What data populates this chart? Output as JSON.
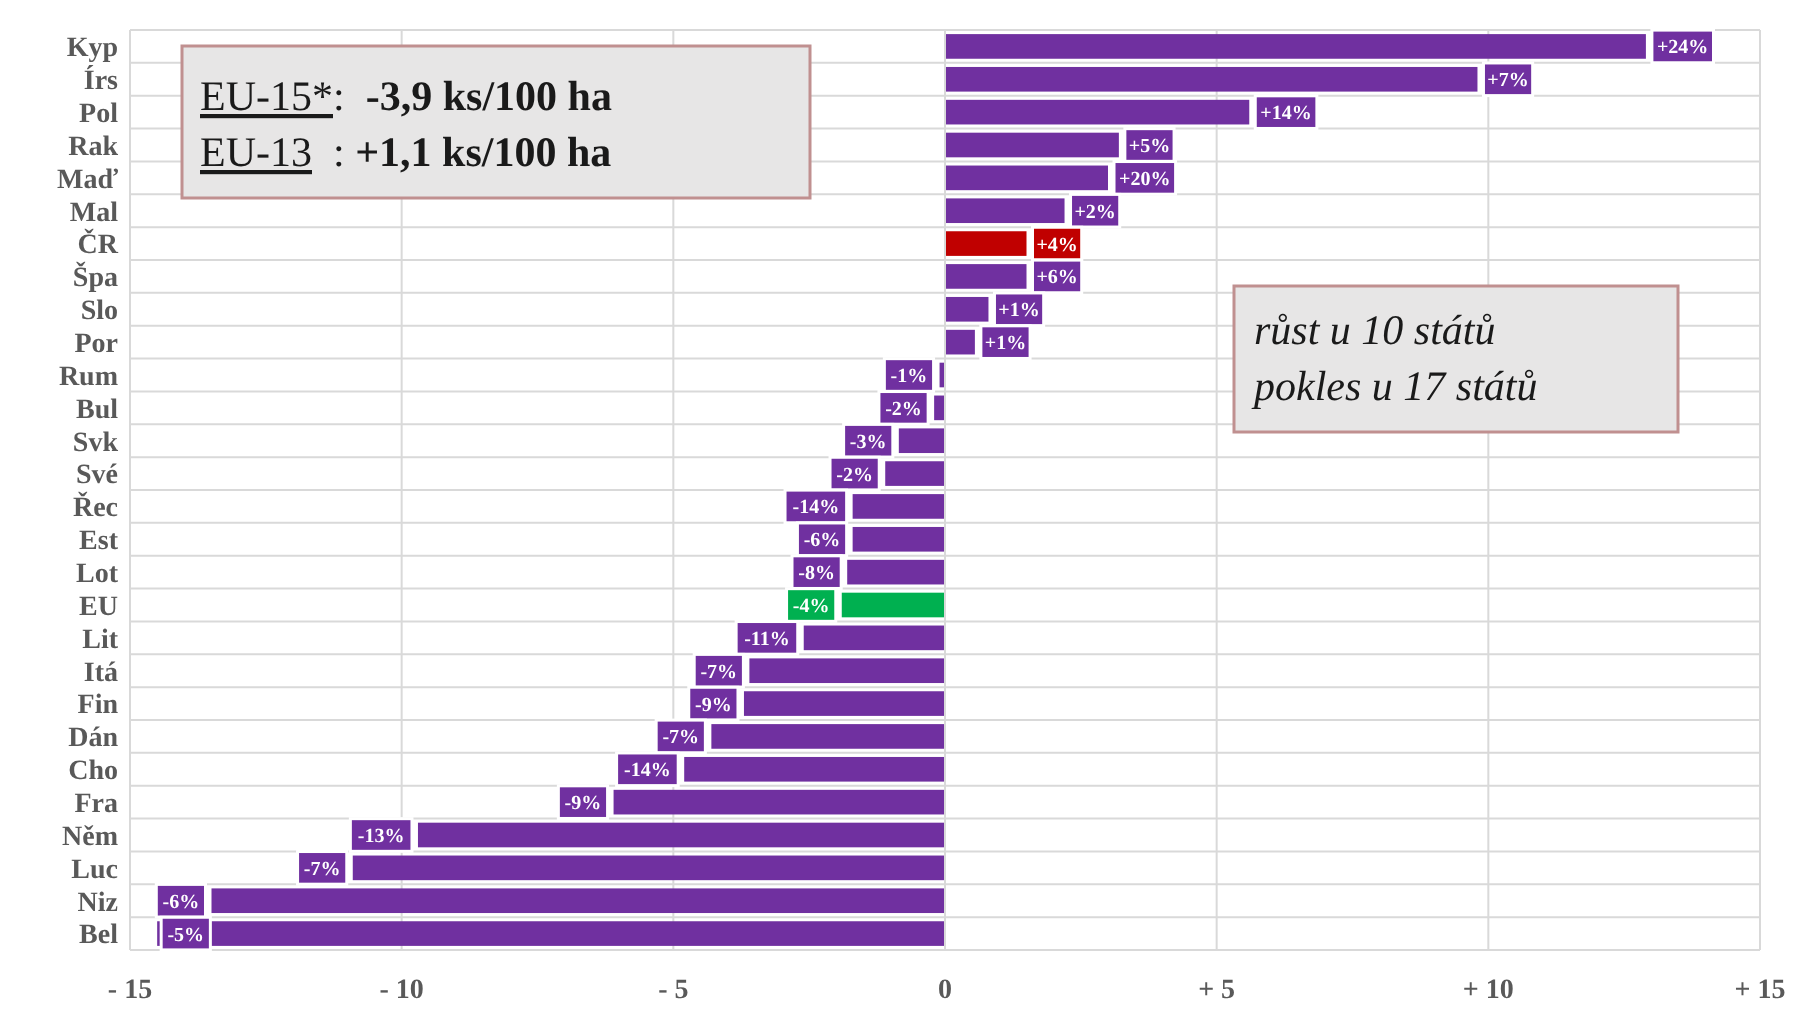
{
  "chart_data": {
    "type": "bar",
    "orientation": "horizontal",
    "categories": [
      "Kyp",
      "Írs",
      "Pol",
      "Rak",
      "Maď",
      "Mal",
      "ČR",
      "Špa",
      "Slo",
      "Por",
      "Rum",
      "Bul",
      "Svk",
      "Své",
      "Řec",
      "Est",
      "Lot",
      "EU",
      "Lit",
      "Itá",
      "Fin",
      "Dán",
      "Cho",
      "Fra",
      "Něm",
      "Luc",
      "Niz",
      "Bel"
    ],
    "values": [
      12.9,
      9.8,
      5.6,
      3.2,
      3.0,
      2.2,
      1.5,
      1.5,
      0.8,
      0.55,
      -0.1,
      -0.2,
      -0.85,
      -1.1,
      -1.7,
      -1.7,
      -1.8,
      -1.9,
      -2.6,
      -3.6,
      -3.7,
      -4.3,
      -4.8,
      -6.1,
      -9.7,
      -10.9,
      -13.5,
      -14.5
    ],
    "colors": [
      "#7030a0",
      "#7030a0",
      "#7030a0",
      "#7030a0",
      "#7030a0",
      "#7030a0",
      "#c00000",
      "#7030a0",
      "#7030a0",
      "#7030a0",
      "#7030a0",
      "#7030a0",
      "#7030a0",
      "#7030a0",
      "#7030a0",
      "#7030a0",
      "#7030a0",
      "#00b050",
      "#7030a0",
      "#7030a0",
      "#7030a0",
      "#7030a0",
      "#7030a0",
      "#7030a0",
      "#7030a0",
      "#7030a0",
      "#7030a0",
      "#7030a0"
    ],
    "xlim": [
      -15,
      15
    ],
    "xticks": [
      {
        "value": -15,
        "label": "- 15"
      },
      {
        "value": -10,
        "label": "- 10"
      },
      {
        "value": -5,
        "label": "- 5"
      },
      0,
      {
        "value": 5,
        "label": "+ 5"
      },
      {
        "value": 10,
        "label": "+ 10"
      },
      {
        "value": 15,
        "label": "+ 15"
      }
    ],
    "grid": true,
    "annotations": [
      "EU-15*:  -3,9 ks/100 ha",
      "EU-13  : +1,1 ks/100 ha",
      "růst u 10 států",
      "pokles u 17 států",
      {
        "text": "+24%",
        "x": 12.9,
        "y": "Kyp"
      },
      {
        "text": "+7%",
        "x": 9.8,
        "y": "Írs"
      },
      {
        "text": "+14%",
        "x": 5.6,
        "y": "Pol"
      },
      {
        "text": "+5%",
        "x": 3.2,
        "y": "Rak"
      },
      {
        "text": "+20%",
        "x": 3.0,
        "y": "Maď"
      },
      {
        "text": "+2%",
        "x": 2.2,
        "y": "Mal"
      },
      {
        "text": "+4%",
        "x": 1.5,
        "y": "ČR"
      },
      {
        "text": "+6%",
        "x": 1.5,
        "y": "Špa"
      },
      {
        "text": "+1%",
        "x": 0.8,
        "y": "Slo"
      },
      {
        "text": "+1%",
        "x": 0.55,
        "y": "Por"
      },
      {
        "text": "-1%",
        "x": -0.1,
        "y": "Rum"
      },
      {
        "text": "-2%",
        "x": -0.2,
        "y": "Bul"
      },
      {
        "text": "-3%",
        "x": -0.85,
        "y": "Svk"
      },
      {
        "text": "-2%",
        "x": -1.1,
        "y": "Své"
      },
      {
        "text": "-14%",
        "x": -1.7,
        "y": "Řec"
      },
      {
        "text": "-6%",
        "x": -1.7,
        "y": "Est"
      },
      {
        "text": "-8%",
        "x": -1.8,
        "y": "Lot"
      },
      {
        "text": "-4%",
        "x": -1.9,
        "y": "EU"
      },
      {
        "text": "-11%",
        "x": -2.6,
        "y": "Lit"
      },
      {
        "text": "-7%",
        "x": -3.6,
        "y": "Itá"
      },
      {
        "text": "-9%",
        "x": -3.7,
        "y": "Fin"
      },
      {
        "text": "-7%",
        "x": -4.3,
        "y": "Dán"
      },
      {
        "text": "-14%",
        "x": -4.8,
        "y": "Cho"
      },
      {
        "text": "-9%",
        "x": -6.1,
        "y": "Fra"
      },
      {
        "text": "-13%",
        "x": -9.7,
        "y": "Něm"
      },
      {
        "text": "-7%",
        "x": -10.9,
        "y": "Luc"
      },
      {
        "text": "-6%",
        "x": -13.5,
        "y": "Niz"
      },
      {
        "text": "-5%",
        "x": -14.5,
        "y": "Bel"
      }
    ]
  }
}
